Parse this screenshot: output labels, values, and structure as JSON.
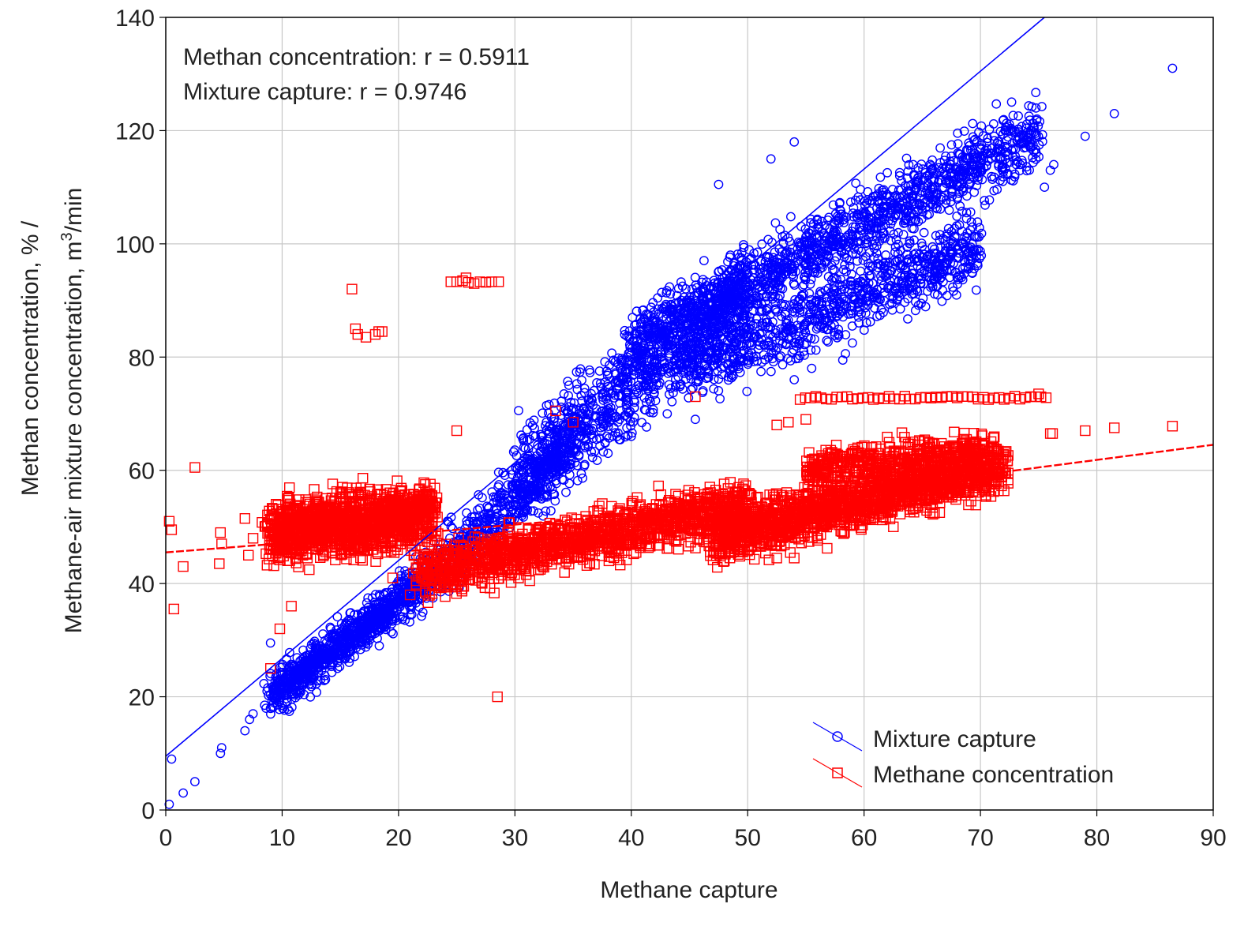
{
  "chart_data": {
    "type": "scatter",
    "title": "",
    "xlabel": "Methane capture",
    "ylabel_line1": "Methan concentration, % /",
    "ylabel_line2_prefix": "Methane-air mixture concentration, m",
    "ylabel_line2_sup": "3",
    "ylabel_line2_suffix": "/min",
    "xlim": [
      0,
      90
    ],
    "ylim": [
      0,
      140
    ],
    "x_ticks": [
      0,
      10,
      20,
      30,
      40,
      50,
      60,
      70,
      80,
      90
    ],
    "y_ticks": [
      0,
      20,
      40,
      60,
      80,
      100,
      120,
      140
    ],
    "grid": true,
    "legend_position": "bottom-right",
    "annotations": [
      "Methan concentration: r = 0.5911",
      "Mixture capture: r = 0.9746"
    ],
    "series": [
      {
        "name": "Mixture capture",
        "color": "#0000ff",
        "marker": "circle",
        "fit_line": {
          "x": [
            0,
            75.5
          ],
          "y": [
            9.5,
            140
          ]
        },
        "clusters": [
          {
            "from": [
              9,
              20
            ],
            "to": [
              22,
              40
            ],
            "spread": 3.5,
            "count": 900
          },
          {
            "from": [
              22,
              40
            ],
            "to": [
              35,
              65
            ],
            "spread": 5,
            "count": 500
          },
          {
            "from": [
              30,
              58
            ],
            "to": [
              50,
              92
            ],
            "spread": 8,
            "count": 1000
          },
          {
            "from": [
              40,
              82
            ],
            "to": [
              75,
              120
            ],
            "spread": 5.5,
            "count": 1400
          },
          {
            "from": [
              45,
              78
            ],
            "to": [
              70,
              100
            ],
            "spread": 6,
            "count": 900
          }
        ],
        "points": [
          {
            "x": 0.3,
            "y": 1
          },
          {
            "x": 1.5,
            "y": 3
          },
          {
            "x": 2.5,
            "y": 5
          },
          {
            "x": 0.5,
            "y": 9
          },
          {
            "x": 4.7,
            "y": 10
          },
          {
            "x": 4.8,
            "y": 11
          },
          {
            "x": 6.8,
            "y": 14
          },
          {
            "x": 7.2,
            "y": 16
          },
          {
            "x": 7.5,
            "y": 17
          },
          {
            "x": 8.5,
            "y": 18.5
          },
          {
            "x": 9,
            "y": 29.5
          },
          {
            "x": 47.5,
            "y": 110.5
          },
          {
            "x": 52,
            "y": 115
          },
          {
            "x": 54,
            "y": 118
          },
          {
            "x": 76,
            "y": 113
          },
          {
            "x": 76.3,
            "y": 114
          },
          {
            "x": 75.5,
            "y": 110
          },
          {
            "x": 79,
            "y": 119
          },
          {
            "x": 81.5,
            "y": 123
          },
          {
            "x": 86.5,
            "y": 131
          },
          {
            "x": 59,
            "y": 82.5
          },
          {
            "x": 55.5,
            "y": 78
          },
          {
            "x": 54,
            "y": 76
          },
          {
            "x": 45.5,
            "y": 69
          },
          {
            "x": 40,
            "y": 66
          },
          {
            "x": 38,
            "y": 63
          },
          {
            "x": 36,
            "y": 61
          }
        ]
      },
      {
        "name": "Methane concentration",
        "color": "#ff0000",
        "marker": "square",
        "fit_line": {
          "x": [
            0,
            25,
            50,
            75,
            90
          ],
          "y": [
            45.5,
            49.5,
            54,
            60.5,
            64.5
          ]
        },
        "clusters": [
          {
            "from": [
              9,
              49
            ],
            "to": [
              23,
              52
            ],
            "spread": 5,
            "count": 1400
          },
          {
            "from": [
              22,
              42
            ],
            "to": [
              50,
              54
            ],
            "spread": 4,
            "count": 1400
          },
          {
            "from": [
              47,
              48
            ],
            "to": [
              72,
              61
            ],
            "spread": 4.2,
            "count": 1700
          },
          {
            "from": [
              55,
              60
            ],
            "to": [
              70,
              64
            ],
            "spread": 3,
            "count": 400
          }
        ],
        "points": [
          {
            "x": 0.3,
            "y": 51
          },
          {
            "x": 0.5,
            "y": 49.5
          },
          {
            "x": 0.7,
            "y": 35.5
          },
          {
            "x": 1.5,
            "y": 43
          },
          {
            "x": 2.5,
            "y": 60.5
          },
          {
            "x": 4.7,
            "y": 49
          },
          {
            "x": 4.8,
            "y": 47
          },
          {
            "x": 4.6,
            "y": 43.5
          },
          {
            "x": 6.8,
            "y": 51.5
          },
          {
            "x": 7.1,
            "y": 45
          },
          {
            "x": 7.5,
            "y": 48
          },
          {
            "x": 9,
            "y": 25
          },
          {
            "x": 9.8,
            "y": 32
          },
          {
            "x": 10.8,
            "y": 36
          },
          {
            "x": 28.5,
            "y": 20
          },
          {
            "x": 16,
            "y": 92
          },
          {
            "x": 16.3,
            "y": 85
          },
          {
            "x": 16.5,
            "y": 84
          },
          {
            "x": 17.2,
            "y": 83.5
          },
          {
            "x": 18,
            "y": 84
          },
          {
            "x": 18.3,
            "y": 84.5
          },
          {
            "x": 18.6,
            "y": 84.5
          },
          {
            "x": 24.5,
            "y": 93.3
          },
          {
            "x": 25,
            "y": 93.3
          },
          {
            "x": 25.5,
            "y": 93.5
          },
          {
            "x": 26,
            "y": 93.2
          },
          {
            "x": 26.5,
            "y": 93
          },
          {
            "x": 27,
            "y": 93.3
          },
          {
            "x": 27.5,
            "y": 93.2
          },
          {
            "x": 28,
            "y": 93.3
          },
          {
            "x": 28.6,
            "y": 93.3
          },
          {
            "x": 25.8,
            "y": 94
          },
          {
            "x": 25,
            "y": 67
          },
          {
            "x": 33.5,
            "y": 70.5
          },
          {
            "x": 35,
            "y": 68.5
          },
          {
            "x": 45.5,
            "y": 73
          },
          {
            "x": 21,
            "y": 38
          },
          {
            "x": 19.5,
            "y": 41
          },
          {
            "x": 21.5,
            "y": 40.5
          },
          {
            "x": 48,
            "y": 44
          },
          {
            "x": 52.5,
            "y": 44.5
          },
          {
            "x": 54,
            "y": 44.5
          },
          {
            "x": 52.5,
            "y": 68
          },
          {
            "x": 53.5,
            "y": 68.5
          },
          {
            "x": 55,
            "y": 69
          },
          {
            "x": 75,
            "y": 73.5
          },
          {
            "x": 76,
            "y": 66.5
          },
          {
            "x": 76.2,
            "y": 66.5
          },
          {
            "x": 79,
            "y": 67
          },
          {
            "x": 81.5,
            "y": 67.5
          },
          {
            "x": 86.5,
            "y": 67.8
          }
        ],
        "band": {
          "x_from": 54.5,
          "x_to": 76,
          "y": 72.8,
          "step": 0.45
        }
      }
    ],
    "legend": [
      {
        "label": "Mixture capture",
        "color": "#0000ff",
        "marker": "circle"
      },
      {
        "label": "Methane concentration",
        "color": "#ff0000",
        "marker": "square"
      }
    ]
  }
}
